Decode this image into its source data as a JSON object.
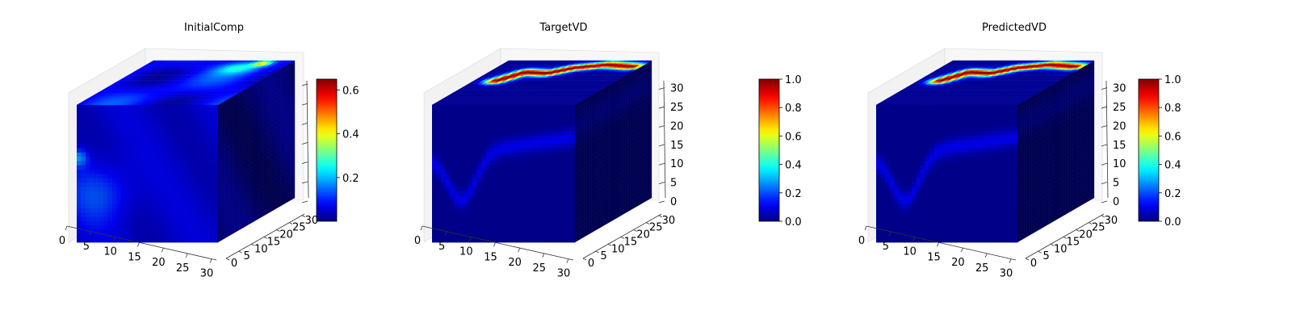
{
  "chart_data": [
    {
      "type": "heatmap",
      "subtype": "3d-voxel-cube",
      "title": "InitialComp",
      "x_ticks": [
        "0",
        "5",
        "10",
        "15",
        "20",
        "25",
        "30"
      ],
      "y_ticks": [
        "0",
        "5",
        "10",
        "15",
        "20",
        "25",
        "30"
      ],
      "z_ticks": [],
      "grid_size": 32,
      "colormap": "jet",
      "colorbar": {
        "min": 0.0,
        "max": 0.65,
        "ticks": [
          "0.2",
          "0.4",
          "0.6"
        ],
        "tick_values": [
          0.2,
          0.4,
          0.6
        ]
      },
      "field": "diffuse",
      "top_hotspot_max": 0.65
    },
    {
      "type": "heatmap",
      "subtype": "3d-voxel-cube",
      "title": "TargetVD",
      "x_ticks": [
        "0",
        "5",
        "10",
        "15",
        "20",
        "25",
        "30"
      ],
      "y_ticks": [
        "0",
        "5",
        "10",
        "15",
        "20",
        "25",
        "30"
      ],
      "z_ticks": [
        "0",
        "5",
        "10",
        "15",
        "20",
        "25",
        "30"
      ],
      "grid_size": 32,
      "colormap": "jet",
      "colorbar": {
        "min": 0.0,
        "max": 1.0,
        "ticks": [
          "0.0",
          "0.2",
          "0.4",
          "0.6",
          "0.8",
          "1.0"
        ],
        "tick_values": [
          0,
          0.2,
          0.4,
          0.6,
          0.8,
          1.0
        ]
      },
      "field": "band",
      "top_band_max": 1.0
    },
    {
      "type": "heatmap",
      "subtype": "3d-voxel-cube",
      "title": "PredictedVD",
      "x_ticks": [
        "0",
        "5",
        "10",
        "15",
        "20",
        "25",
        "30"
      ],
      "y_ticks": [
        "0",
        "5",
        "10",
        "15",
        "20",
        "25",
        "30"
      ],
      "z_ticks": [
        "0",
        "5",
        "10",
        "15",
        "20",
        "25",
        "30"
      ],
      "grid_size": 32,
      "colormap": "jet",
      "colorbar": {
        "min": 0.0,
        "max": 1.0,
        "ticks": [
          "0.0",
          "0.2",
          "0.4",
          "0.6",
          "0.8",
          "1.0"
        ],
        "tick_values": [
          0,
          0.2,
          0.4,
          0.6,
          0.8,
          1.0
        ]
      },
      "field": "band",
      "top_band_max": 1.0
    }
  ]
}
